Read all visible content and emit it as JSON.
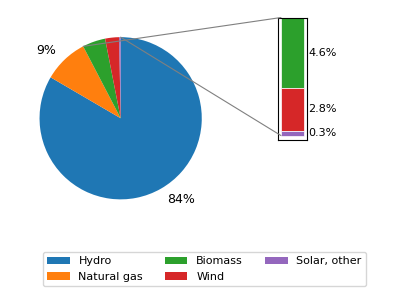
{
  "chart_data": [
    {
      "type": "pie",
      "categories": [
        "Hydro",
        "Natural gas",
        "Biomass",
        "Wind",
        "Solar, other"
      ],
      "values": [
        84,
        9,
        4.6,
        2.8,
        0.3
      ],
      "value_labels": [
        "84%",
        "9%",
        null,
        null,
        null
      ],
      "legend": "lower center"
    },
    {
      "type": "bar",
      "stacked": true,
      "categories": [
        null
      ],
      "series": [
        {
          "name": "Biomass",
          "values": [
            4.6
          ],
          "value_labels": [
            "4.6%"
          ]
        },
        {
          "name": "Wind",
          "values": [
            2.8
          ],
          "value_labels": [
            "2.8%"
          ]
        },
        {
          "name": "Solar, other",
          "values": [
            0.3
          ],
          "value_labels": [
            "0.3%"
          ]
        }
      ],
      "ylim": [
        0,
        8
      ],
      "yticks": [],
      "tick_labels": false,
      "data_labels": true
    }
  ]
}
